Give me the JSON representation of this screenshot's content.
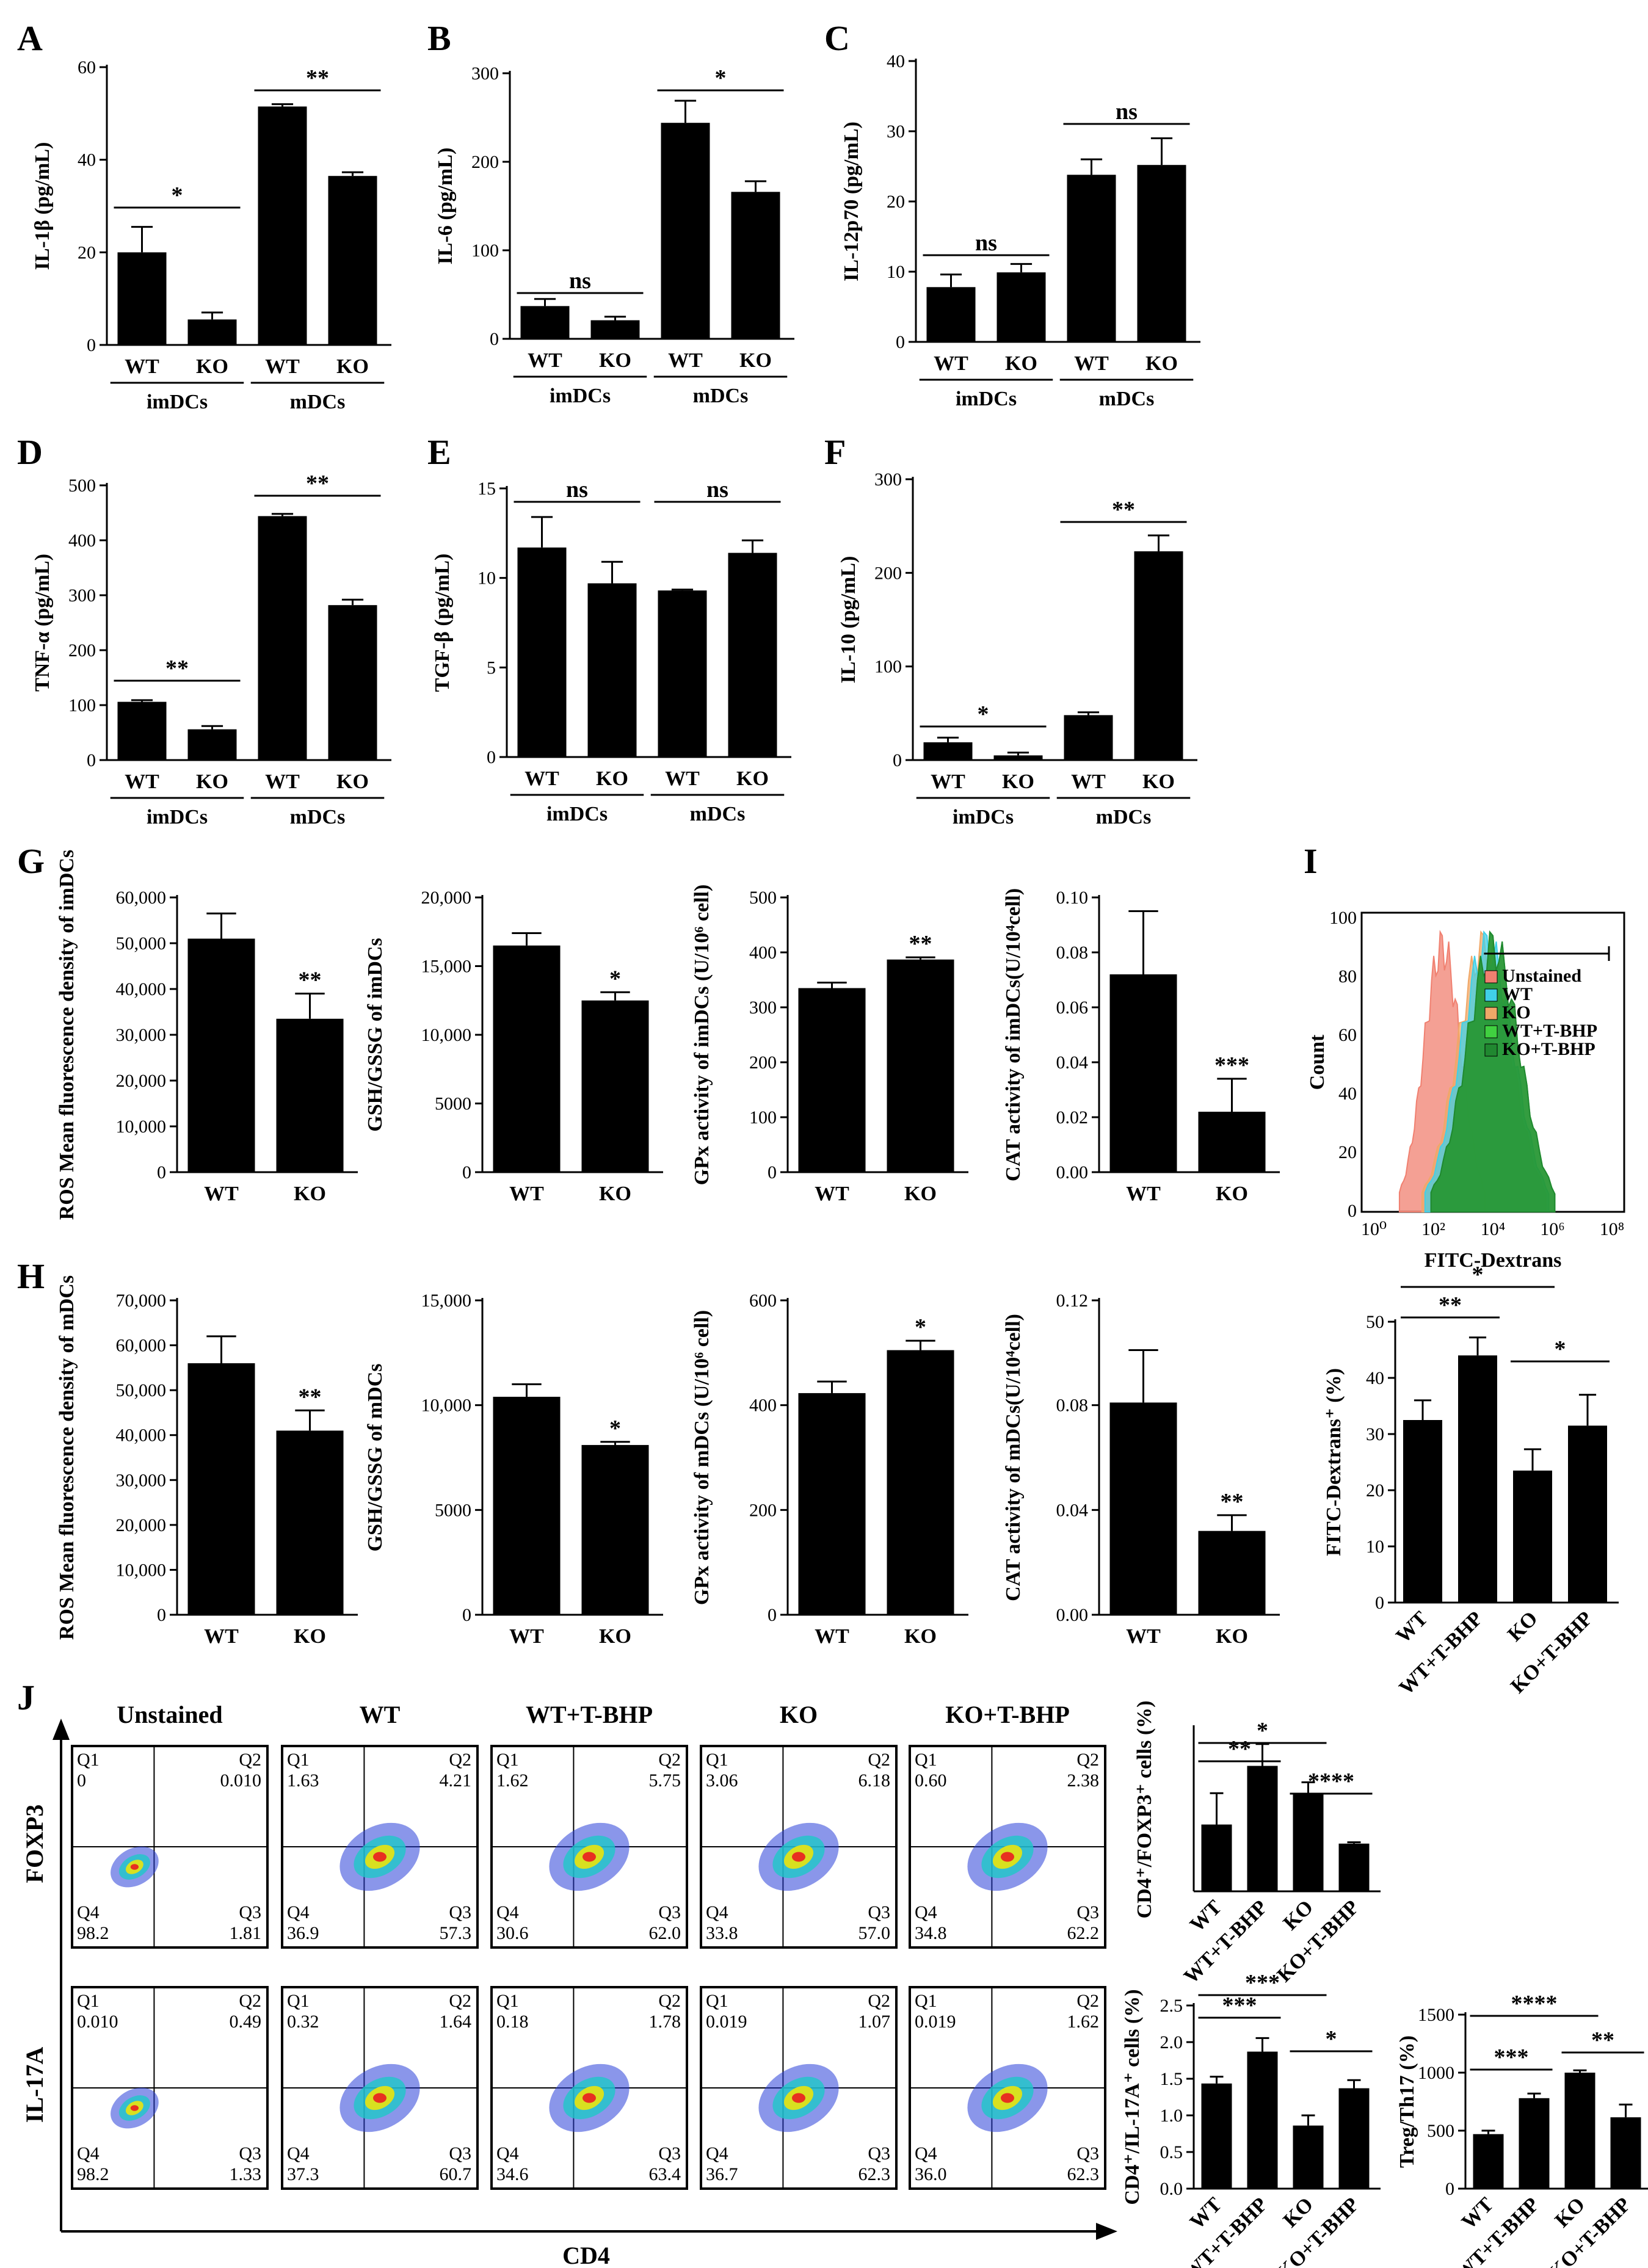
{
  "figure": {
    "panel_labels": [
      "A",
      "B",
      "C",
      "D",
      "E",
      "F",
      "G",
      "H",
      "I",
      "J"
    ],
    "flow_column_titles": [
      "Unstained",
      "WT",
      "WT+T-BHP",
      "KO",
      "KO+T-BHP"
    ],
    "flow_row_labels": [
      "FOXP3",
      "IL-17A"
    ],
    "flow_x_label": "CD4",
    "quadrant_names": [
      "Q1",
      "Q2",
      "Q4",
      "Q3"
    ]
  },
  "chart_data": [
    {
      "id": "A",
      "type": "bar",
      "ylabel": "IL-1β (pg/mL)",
      "ylim": [
        0,
        60
      ],
      "yticks": [
        "0",
        "20",
        "40",
        "60"
      ],
      "categories": [
        "WT",
        "KO",
        "WT",
        "KO"
      ],
      "groups": [
        "imDCs",
        "mDCs"
      ],
      "values": [
        20,
        5.5,
        51.5,
        36.5
      ],
      "errors": [
        5.5,
        1.5,
        0.5,
        0.8
      ],
      "brackets": [
        {
          "label": "*",
          "from": 0,
          "to": 1
        },
        {
          "label": "**",
          "from": 2,
          "to": 3
        }
      ]
    },
    {
      "id": "B",
      "type": "bar",
      "ylabel": "IL-6 (pg/mL)",
      "ylim": [
        0,
        300
      ],
      "yticks": [
        "0",
        "100",
        "200",
        "300"
      ],
      "categories": [
        "WT",
        "KO",
        "WT",
        "KO"
      ],
      "groups": [
        "imDCs",
        "mDCs"
      ],
      "values": [
        37,
        21,
        244,
        166
      ],
      "errors": [
        8,
        4,
        25,
        12
      ],
      "brackets": [
        {
          "label": "ns",
          "from": 0,
          "to": 1
        },
        {
          "label": "*",
          "from": 2,
          "to": 3
        }
      ]
    },
    {
      "id": "C",
      "type": "bar",
      "ylabel": "IL-12p70 (pg/mL)",
      "ylim": [
        0,
        40
      ],
      "yticks": [
        "0",
        "10",
        "20",
        "30",
        "40"
      ],
      "categories": [
        "WT",
        "KO",
        "WT",
        "KO"
      ],
      "groups": [
        "imDCs",
        "mDCs"
      ],
      "values": [
        7.8,
        9.9,
        23.8,
        25.2
      ],
      "errors": [
        1.8,
        1.2,
        2.2,
        3.8
      ],
      "brackets": [
        {
          "label": "ns",
          "from": 0,
          "to": 1
        },
        {
          "label": "ns",
          "from": 2,
          "to": 3
        }
      ]
    },
    {
      "id": "D",
      "type": "bar",
      "ylabel": "TNF-α (pg/mL)",
      "ylim": [
        0,
        500
      ],
      "yticks": [
        "0",
        "100",
        "200",
        "300",
        "400",
        "500"
      ],
      "categories": [
        "WT",
        "KO",
        "WT",
        "KO"
      ],
      "groups": [
        "imDCs",
        "mDCs"
      ],
      "values": [
        106,
        56,
        444,
        282
      ],
      "errors": [
        3,
        6,
        4,
        10
      ],
      "brackets": [
        {
          "label": "**",
          "from": 0,
          "to": 1
        },
        {
          "label": "**",
          "from": 2,
          "to": 3
        }
      ]
    },
    {
      "id": "E",
      "type": "bar",
      "ylabel": "TGF-β (pg/mL)",
      "ylim": [
        0,
        15
      ],
      "yticks": [
        "0",
        "5",
        "10",
        "15"
      ],
      "categories": [
        "WT",
        "KO",
        "WT",
        "KO"
      ],
      "groups": [
        "imDCs",
        "mDCs"
      ],
      "values": [
        11.7,
        9.7,
        9.3,
        11.4
      ],
      "errors": [
        1.7,
        1.2,
        0.05,
        0.7
      ],
      "brackets": [
        {
          "label": "ns",
          "from": 0,
          "to": 1
        },
        {
          "label": "ns",
          "from": 2,
          "to": 3
        }
      ]
    },
    {
      "id": "F",
      "type": "bar",
      "ylabel": "IL-10 (pg/mL)",
      "ylim": [
        0,
        300
      ],
      "yticks": [
        "0",
        "100",
        "200",
        "300"
      ],
      "categories": [
        "WT",
        "KO",
        "WT",
        "KO"
      ],
      "groups": [
        "imDCs",
        "mDCs"
      ],
      "values": [
        19,
        5,
        48,
        223
      ],
      "errors": [
        5,
        3,
        3,
        17
      ],
      "brackets": [
        {
          "label": "*",
          "from": 0,
          "to": 1
        },
        {
          "label": "**",
          "from": 2,
          "to": 3
        }
      ]
    },
    {
      "id": "G1",
      "type": "bar",
      "ylabel": "ROS Mean fluorescence density of imDCs",
      "ylim": [
        0,
        60000
      ],
      "yticks": [
        "0",
        "10,000",
        "20,000",
        "30,000",
        "40,000",
        "50,000",
        "60,000"
      ],
      "categories": [
        "WT",
        "KO"
      ],
      "values": [
        51000,
        33500
      ],
      "errors": [
        5500,
        5500
      ],
      "stars": [
        "",
        "**"
      ]
    },
    {
      "id": "G2",
      "type": "bar",
      "ylabel": "GSH/GSSG of imDCs",
      "ylim": [
        0,
        20000
      ],
      "yticks": [
        "0",
        "5000",
        "10,000",
        "15,000",
        "20,000"
      ],
      "categories": [
        "WT",
        "KO"
      ],
      "values": [
        16500,
        12500
      ],
      "errors": [
        900,
        600
      ],
      "stars": [
        "",
        "*"
      ]
    },
    {
      "id": "G3",
      "type": "bar",
      "ylabel": "GPx activity of imDCs (U/10⁶ cell)",
      "ylim": [
        0,
        500
      ],
      "yticks": [
        "0",
        "100",
        "200",
        "300",
        "400",
        "500"
      ],
      "categories": [
        "WT",
        "KO"
      ],
      "values": [
        335,
        387
      ],
      "errors": [
        10,
        4
      ],
      "stars": [
        "",
        "**"
      ]
    },
    {
      "id": "G4",
      "type": "bar",
      "ylabel": "CAT activity of imDCs(U/10⁴cell)",
      "ylim": [
        0,
        0.1
      ],
      "yticks": [
        "0.00",
        "0.02",
        "0.04",
        "0.06",
        "0.08",
        "0.10"
      ],
      "categories": [
        "WT",
        "KO"
      ],
      "values": [
        0.072,
        0.022
      ],
      "errors": [
        0.023,
        0.012
      ],
      "stars": [
        "",
        "***"
      ]
    },
    {
      "id": "H1",
      "type": "bar",
      "ylabel": "ROS Mean fluorescence density of mDCs",
      "ylim": [
        0,
        70000
      ],
      "yticks": [
        "0",
        "10,000",
        "20,000",
        "30,000",
        "40,000",
        "50,000",
        "60,000",
        "70,000"
      ],
      "categories": [
        "WT",
        "KO"
      ],
      "values": [
        56000,
        41000
      ],
      "errors": [
        6000,
        4500
      ],
      "stars": [
        "",
        "**"
      ]
    },
    {
      "id": "H2",
      "type": "bar",
      "ylabel": "GSH/GSSG of mDCs",
      "ylim": [
        0,
        15000
      ],
      "yticks": [
        "0",
        "5000",
        "10,000",
        "15,000"
      ],
      "categories": [
        "WT",
        "KO"
      ],
      "values": [
        10400,
        8100
      ],
      "errors": [
        600,
        150
      ],
      "stars": [
        "",
        "*"
      ]
    },
    {
      "id": "H3",
      "type": "bar",
      "ylabel": "GPx activity of mDCs (U/10⁶ cell)",
      "ylim": [
        0,
        600
      ],
      "yticks": [
        "0",
        "200",
        "400",
        "600"
      ],
      "categories": [
        "WT",
        "KO"
      ],
      "values": [
        423,
        505
      ],
      "errors": [
        22,
        18
      ],
      "stars": [
        "",
        "*"
      ]
    },
    {
      "id": "H4",
      "type": "bar",
      "ylabel": "CAT activity of mDCs(U/10⁴cell)",
      "ylim": [
        0,
        0.12
      ],
      "yticks": [
        "0.00",
        "0.04",
        "0.08",
        "0.12"
      ],
      "categories": [
        "WT",
        "KO"
      ],
      "values": [
        0.081,
        0.032
      ],
      "errors": [
        0.02,
        0.006
      ],
      "stars": [
        "",
        "**"
      ]
    },
    {
      "id": "I",
      "type": "histogram",
      "ylabel": "Count",
      "xlabel": "FITC-Dextrans",
      "yticks": [
        "0",
        "20",
        "40",
        "60",
        "80",
        "100"
      ],
      "xticks": [
        "10⁰",
        "10²",
        "10⁴",
        "10⁶",
        "10⁸"
      ],
      "legend": [
        {
          "name": "Unstained",
          "color": "#f08070"
        },
        {
          "name": "WT",
          "color": "#40d0e8"
        },
        {
          "name": "KO",
          "color": "#f0a868"
        },
        {
          "name": "WT+T-BHP",
          "color": "#40d040"
        },
        {
          "name": "KO+T-BHP",
          "color": "#208830"
        }
      ],
      "series_peak_log10": [
        2.3,
        3.8,
        3.7,
        4.0,
        4.0
      ]
    },
    {
      "id": "I2",
      "type": "bar",
      "ylabel": "FITC-Dextrans⁺ (%)",
      "ylim": [
        0,
        50
      ],
      "yticks": [
        "0",
        "10",
        "20",
        "30",
        "40",
        "50"
      ],
      "categories": [
        "WT",
        "WT+T-BHP",
        "KO",
        "KO+T-BHP"
      ],
      "values": [
        32.5,
        44,
        23.5,
        31.5
      ],
      "errors": [
        3.5,
        3.2,
        3.8,
        5.5
      ],
      "brackets": [
        {
          "label": "*",
          "from": 0,
          "to": 2
        },
        {
          "label": "**",
          "from": 0,
          "to": 1
        },
        {
          "label": "*",
          "from": 2,
          "to": 3
        }
      ]
    },
    {
      "id": "J1",
      "type": "bar",
      "ylabel": "CD4⁺/FOXP3⁺ cells (%)",
      "ylim": [
        0,
        12
      ],
      "yticks": [],
      "categories": [
        "WT",
        "WT+T-BHP",
        "KO",
        "KO+T-BHP"
      ],
      "values": [
        4.9,
        9.2,
        7.2,
        3.5
      ],
      "errors": [
        2.3,
        1.6,
        0.8,
        0.1
      ],
      "brackets": [
        {
          "label": "*",
          "from": 0,
          "to": 2
        },
        {
          "label": "**",
          "from": 0,
          "to": 1
        },
        {
          "label": "****",
          "from": 2,
          "to": 3
        }
      ]
    },
    {
      "id": "J2",
      "type": "bar",
      "ylabel": "CD4⁺/IL-17A⁺ cells (%)",
      "ylim": [
        0,
        2.7
      ],
      "yticks": [
        "0.0",
        "0.5",
        "1.0",
        "1.5",
        "2.0",
        "2.5"
      ],
      "categories": [
        "WT",
        "WT+T-BHP",
        "KO",
        "KO+T-BHP"
      ],
      "values": [
        1.55,
        2.02,
        0.93,
        1.48
      ],
      "errors": [
        0.1,
        0.2,
        0.15,
        0.12
      ],
      "brackets": [
        {
          "label": "***",
          "from": 0,
          "to": 2
        },
        {
          "label": "***",
          "from": 0,
          "to": 1
        },
        {
          "label": "*",
          "from": 2,
          "to": 3
        }
      ]
    },
    {
      "id": "J3",
      "type": "bar",
      "ylabel": "Treg/Th17 (%)",
      "ylim": [
        0,
        1500
      ],
      "yticks": [
        "0",
        "500",
        "1000",
        "1500"
      ],
      "categories": [
        "WT",
        "WT+T-BHP",
        "KO",
        "KO+T-BHP"
      ],
      "values": [
        470,
        780,
        1000,
        615
      ],
      "errors": [
        30,
        40,
        20,
        110
      ],
      "brackets": [
        {
          "label": "****",
          "from": 0,
          "to": 2
        },
        {
          "label": "***",
          "from": 0,
          "to": 1
        },
        {
          "label": "**",
          "from": 2,
          "to": 3
        }
      ]
    },
    {
      "id": "J_flow",
      "type": "scatter",
      "quadrants": {
        "FOXP3": [
          [
            "0",
            "0.010",
            "98.2",
            "1.81"
          ],
          [
            "1.63",
            "4.21",
            "36.9",
            "57.3"
          ],
          [
            "1.62",
            "5.75",
            "30.6",
            "62.0"
          ],
          [
            "3.06",
            "6.18",
            "33.8",
            "57.0"
          ],
          [
            "0.60",
            "2.38",
            "34.8",
            "62.2"
          ]
        ],
        "IL-17A": [
          [
            "0.010",
            "0.49",
            "98.2",
            "1.33"
          ],
          [
            "0.32",
            "1.64",
            "37.3",
            "60.7"
          ],
          [
            "0.18",
            "1.78",
            "34.6",
            "63.4"
          ],
          [
            "0.019",
            "1.07",
            "36.7",
            "62.3"
          ],
          [
            "0.019",
            "1.62",
            "36.0",
            "62.3"
          ]
        ]
      }
    }
  ]
}
